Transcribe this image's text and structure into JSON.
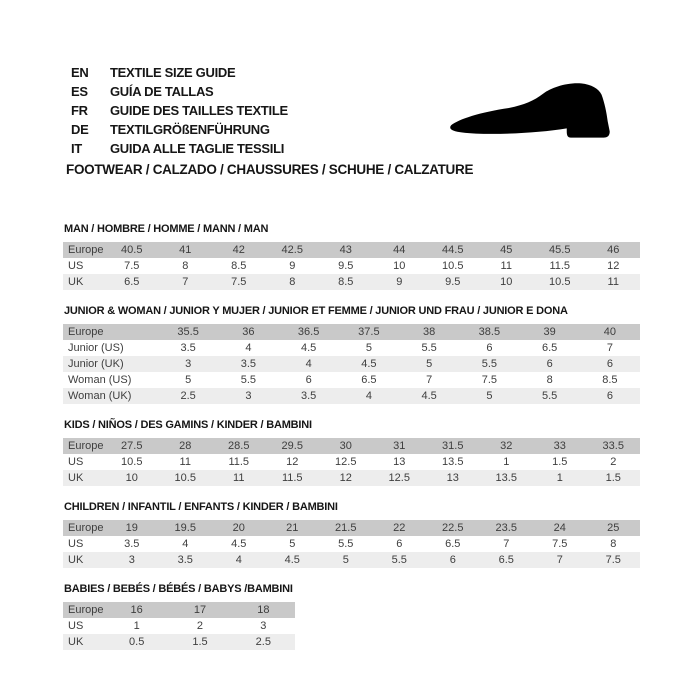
{
  "header": {
    "languages": [
      {
        "code": "EN",
        "text": "TEXTILE SIZE GUIDE"
      },
      {
        "code": "ES",
        "text": "GUÍA DE TALLAS"
      },
      {
        "code": "FR",
        "text": "GUIDE DES TAILLES TEXTILE"
      },
      {
        "code": "DE",
        "text": "TEXTILGRÖßENFÜHRUNG"
      },
      {
        "code": "IT",
        "text": "GUIDA ALLE TAGLIE TESSILI"
      }
    ],
    "category_line": "FOOTWEAR / CALZADO / CHAUSSURES / SCHUHE / CALZATURE",
    "shoe_icon": "dress-shoe-silhouette"
  },
  "colors": {
    "header_row_bg": "#c9c9c9",
    "alt_row_bg": "#ededed",
    "plain_row_bg": "#ffffff",
    "cell_text": "#3e3e3e",
    "heading_text": "#161616",
    "icon_fill": "#000000"
  },
  "sections": [
    {
      "id": "man",
      "title": "MAN / HOMBRE / HOMME / MANN / MAN",
      "rows": [
        {
          "label": "Europe",
          "style": "header",
          "values": [
            "40.5",
            "41",
            "42",
            "42.5",
            "43",
            "44",
            "44.5",
            "45",
            "45.5",
            "46"
          ]
        },
        {
          "label": "US",
          "style": "plain",
          "values": [
            "7.5",
            "8",
            "8.5",
            "9",
            "9.5",
            "10",
            "10.5",
            "11",
            "11.5",
            "12"
          ]
        },
        {
          "label": "UK",
          "style": "alt",
          "values": [
            "6.5",
            "7",
            "7.5",
            "8",
            "8.5",
            "9",
            "9.5",
            "10",
            "10.5",
            "11"
          ]
        }
      ]
    },
    {
      "id": "junior",
      "title": "JUNIOR & WOMAN / JUNIOR Y MUJER / JUNIOR ET FEMME / JUNIOR UND FRAU / JUNIOR E DONA",
      "rows": [
        {
          "label": "Europe",
          "style": "header",
          "values": [
            "35.5",
            "36",
            "36.5",
            "37.5",
            "38",
            "38.5",
            "39",
            "40"
          ]
        },
        {
          "label": "Junior (US)",
          "style": "plain",
          "values": [
            "3.5",
            "4",
            "4.5",
            "5",
            "5.5",
            "6",
            "6.5",
            "7"
          ]
        },
        {
          "label": "Junior (UK)",
          "style": "alt",
          "values": [
            "3",
            "3.5",
            "4",
            "4.5",
            "5",
            "5.5",
            "6",
            "6"
          ]
        },
        {
          "label": "Woman (US)",
          "style": "plain",
          "values": [
            "5",
            "5.5",
            "6",
            "6.5",
            "7",
            "7.5",
            "8",
            "8.5"
          ]
        },
        {
          "label": "Woman (UK)",
          "style": "alt",
          "values": [
            "2.5",
            "3",
            "3.5",
            "4",
            "4.5",
            "5",
            "5.5",
            "6"
          ]
        }
      ]
    },
    {
      "id": "kids",
      "title": "KIDS / NIÑOS / DES GAMINS / KINDER / BAMBINI",
      "rows": [
        {
          "label": "Europe",
          "style": "header",
          "values": [
            "27.5",
            "28",
            "28.5",
            "29.5",
            "30",
            "31",
            "31.5",
            "32",
            "33",
            "33.5"
          ]
        },
        {
          "label": "US",
          "style": "plain",
          "values": [
            "10.5",
            "11",
            "11.5",
            "12",
            "12.5",
            "13",
            "13.5",
            "1",
            "1.5",
            "2"
          ]
        },
        {
          "label": "UK",
          "style": "alt",
          "values": [
            "10",
            "10.5",
            "11",
            "11.5",
            "12",
            "12.5",
            "13",
            "13.5",
            "1",
            "1.5"
          ]
        }
      ]
    },
    {
      "id": "children",
      "title": "CHILDREN / INFANTIL / ENFANTS / KINDER / BAMBINI",
      "rows": [
        {
          "label": "Europe",
          "style": "header",
          "values": [
            "19",
            "19.5",
            "20",
            "21",
            "21.5",
            "22",
            "22.5",
            "23.5",
            "24",
            "25"
          ]
        },
        {
          "label": "US",
          "style": "plain",
          "values": [
            "3.5",
            "4",
            "4.5",
            "5",
            "5.5",
            "6",
            "6.5",
            "7",
            "7.5",
            "8"
          ]
        },
        {
          "label": "UK",
          "style": "alt",
          "values": [
            "3",
            "3.5",
            "4",
            "4.5",
            "5",
            "5.5",
            "6",
            "6.5",
            "7",
            "7.5"
          ]
        }
      ]
    },
    {
      "id": "babies",
      "title": "BABIES / BEBÉS / BÉBÉS / BABYS /BAMBINI",
      "rows": [
        {
          "label": "Europe",
          "style": "header",
          "values": [
            "16",
            "17",
            "18"
          ]
        },
        {
          "label": "US",
          "style": "plain",
          "values": [
            "1",
            "2",
            "3"
          ]
        },
        {
          "label": "UK",
          "style": "alt",
          "values": [
            "0.5",
            "1.5",
            "2.5"
          ]
        }
      ]
    }
  ]
}
